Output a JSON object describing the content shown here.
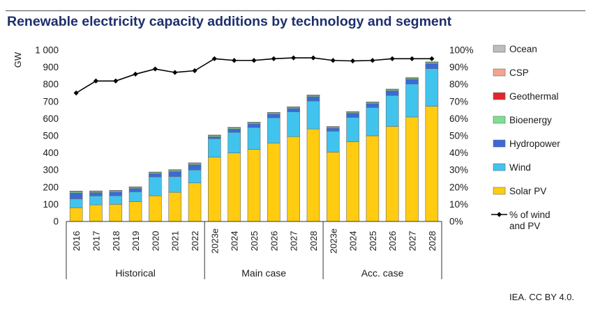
{
  "title": "Renewable electricity capacity additions by technology and segment",
  "credit": "IEA. CC BY 4.0.",
  "colors": {
    "Ocean": "#bdbdbd",
    "CSP": "#f4a48c",
    "Geothermal": "#e2262b",
    "Bioenergy": "#7ee08f",
    "Hydropower": "#3b6ad6",
    "Wind": "#40c4ee",
    "Solar PV": "#ffcc11",
    "line": "#000000"
  },
  "chart_data": {
    "type": "bar",
    "stacked": true,
    "categories": [
      "2016",
      "2017",
      "2018",
      "2019",
      "2020",
      "2021",
      "2022",
      "2023e",
      "2024",
      "2025",
      "2026",
      "2027",
      "2028",
      "2023e",
      "2024",
      "2025",
      "2026",
      "2027",
      "2028"
    ],
    "groups": [
      {
        "label": "Historical",
        "start": 0,
        "end": 6
      },
      {
        "label": "Main case",
        "start": 7,
        "end": 12
      },
      {
        "label": "Acc. case",
        "start": 13,
        "end": 18
      }
    ],
    "ylabel": "GW",
    "ylim": [
      0,
      1000
    ],
    "yticks": [
      "0",
      "100",
      "200",
      "300",
      "400",
      "500",
      "600",
      "700",
      "800",
      "900",
      "1 000"
    ],
    "y2lim": [
      0,
      100
    ],
    "y2ticks": [
      "0%",
      "10%",
      "20%",
      "30%",
      "40%",
      "50%",
      "60%",
      "70%",
      "80%",
      "90%",
      "100%"
    ],
    "series": [
      {
        "name": "Solar PV",
        "values": [
          80,
          97,
          100,
          115,
          150,
          170,
          225,
          375,
          400,
          420,
          458,
          495,
          540,
          405,
          465,
          500,
          555,
          610,
          672
        ]
      },
      {
        "name": "Wind",
        "values": [
          52,
          52,
          50,
          58,
          110,
          92,
          75,
          108,
          120,
          128,
          147,
          145,
          163,
          122,
          142,
          165,
          180,
          192,
          220
        ]
      },
      {
        "name": "Hydropower",
        "values": [
          35,
          20,
          22,
          20,
          19,
          30,
          32,
          12,
          20,
          22,
          22,
          20,
          26,
          18,
          25,
          23,
          28,
          28,
          30
        ]
      },
      {
        "name": "Bioenergy",
        "values": [
          9,
          8,
          8,
          8,
          8,
          9,
          9,
          8,
          8,
          8,
          8,
          8,
          8,
          8,
          8,
          8,
          8,
          8,
          8
        ]
      },
      {
        "name": "Geothermal",
        "values": [
          0.5,
          0.5,
          0.5,
          0.5,
          0.5,
          0.5,
          0.5,
          0.5,
          0.5,
          0.5,
          0.5,
          0.5,
          0.5,
          0.5,
          0.5,
          0.5,
          0.5,
          0.5,
          0.5
        ]
      },
      {
        "name": "CSP",
        "values": [
          0.3,
          0.3,
          0.3,
          0.3,
          0.3,
          0.3,
          0.3,
          0.3,
          0.3,
          0.3,
          0.3,
          0.3,
          0.3,
          0.3,
          0.3,
          0.3,
          0.3,
          0.3,
          0.3
        ]
      },
      {
        "name": "Ocean",
        "values": [
          0.5,
          0.5,
          0.5,
          0.5,
          0.5,
          0.5,
          0.5,
          0.5,
          0.5,
          0.5,
          0.5,
          0.5,
          0.5,
          0.5,
          0.5,
          0.5,
          0.5,
          0.5,
          0.5
        ]
      }
    ],
    "line": {
      "name": "% of wind and PV",
      "axis": "right",
      "values": [
        75,
        82,
        82,
        86,
        89,
        87,
        88,
        95,
        94,
        94,
        95,
        95.5,
        95.5,
        94,
        93.7,
        94,
        95,
        95,
        95
      ]
    },
    "legend": {
      "placement": "right",
      "entries": [
        "Ocean",
        "CSP",
        "Geothermal",
        "Bioenergy",
        "Hydropower",
        "Wind",
        "Solar PV"
      ],
      "line_label_lines": [
        "% of wind",
        "and PV"
      ]
    }
  }
}
